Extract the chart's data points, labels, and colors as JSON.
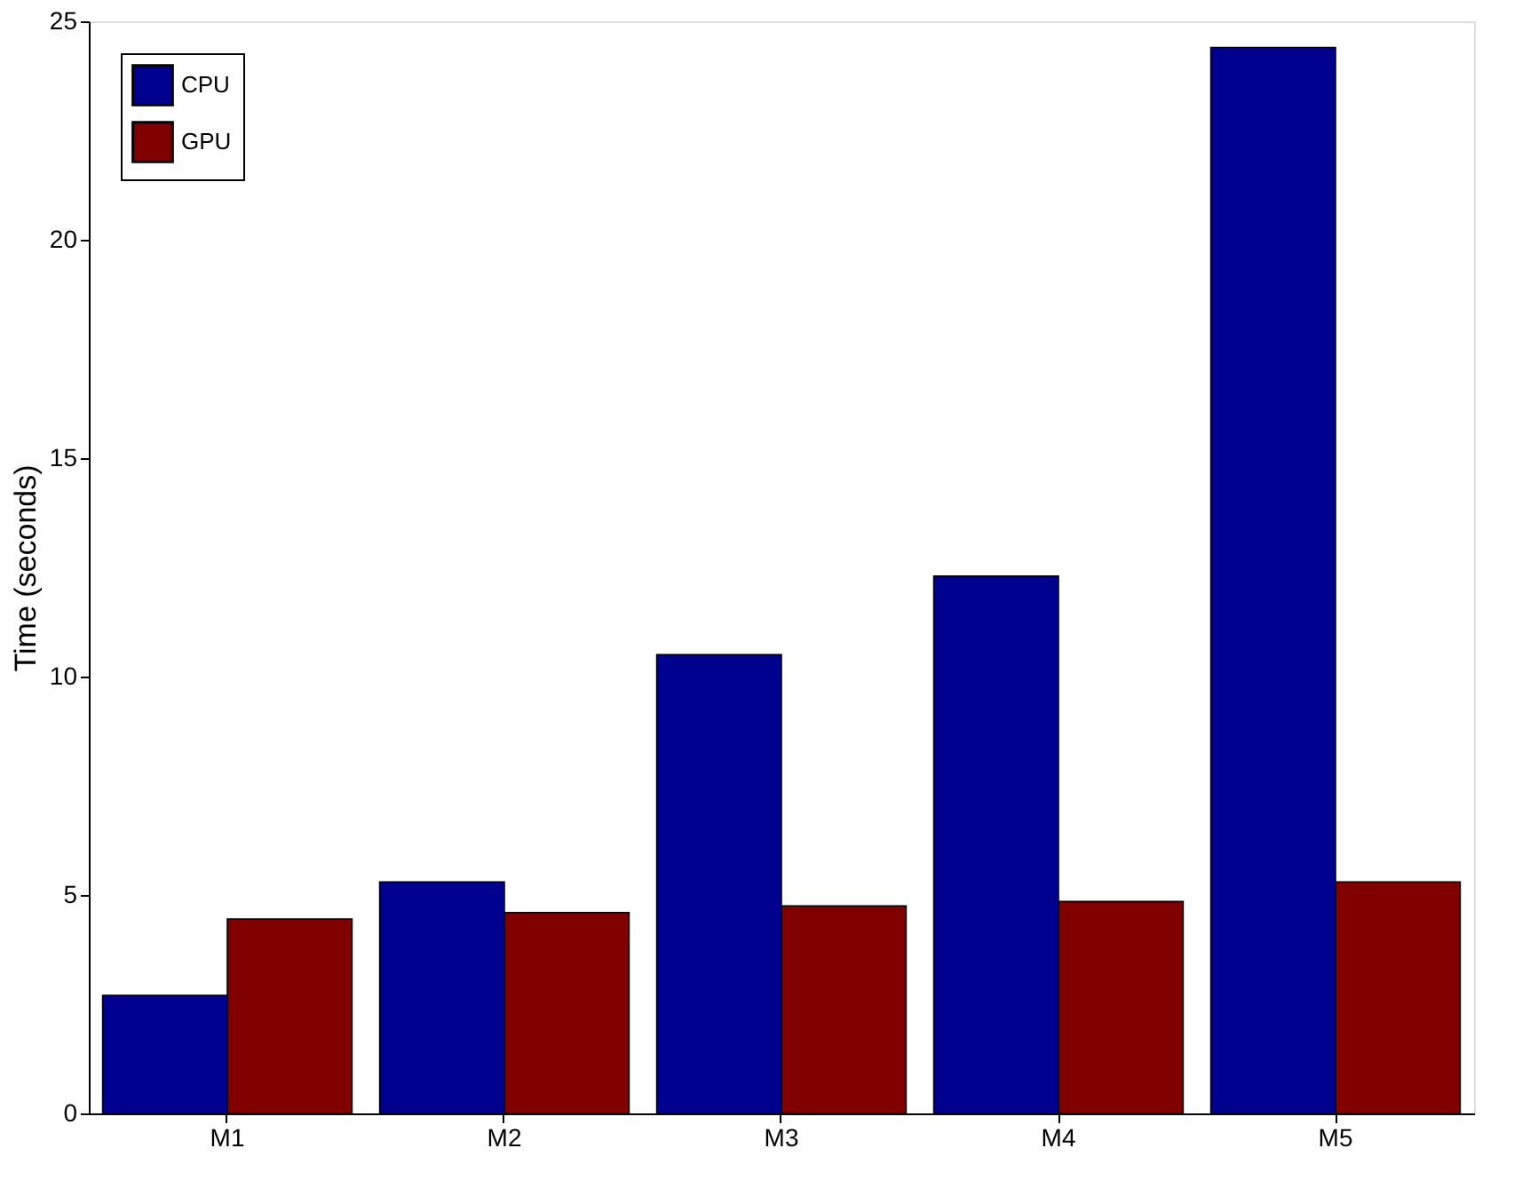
{
  "chart_data": {
    "type": "bar",
    "ylabel": "Time (seconds)",
    "categories": [
      "M1",
      "M2",
      "M3",
      "M4",
      "M5"
    ],
    "series": [
      {
        "name": "CPU",
        "color": "#00008f",
        "values": [
          2.7,
          5.3,
          10.5,
          12.3,
          24.4
        ]
      },
      {
        "name": "GPU",
        "color": "#800000",
        "values": [
          4.45,
          4.6,
          4.75,
          4.85,
          5.3
        ]
      }
    ],
    "ylim": [
      0,
      25
    ],
    "yticks": [
      0,
      5,
      10,
      15,
      20,
      25
    ],
    "grid": false,
    "legend": "top left"
  }
}
